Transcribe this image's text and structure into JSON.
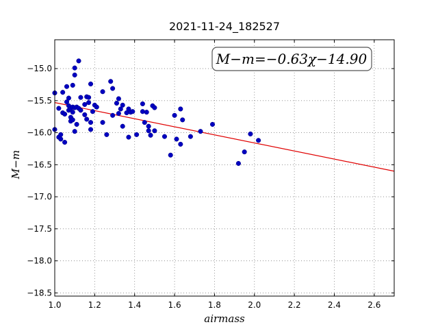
{
  "chart_data": {
    "type": "scatter",
    "title": "2021-11-24_182527",
    "xlabel": "airmass",
    "ylabel": "M−m",
    "xlim": [
      1.0,
      2.7
    ],
    "ylim": [
      -18.55,
      -14.55
    ],
    "y_inverted": true,
    "grid": true,
    "xticks": [
      "1.0",
      "1.2",
      "1.4",
      "1.6",
      "1.8",
      "2.0",
      "2.2",
      "2.4",
      "2.6"
    ],
    "xtick_values": [
      1.0,
      1.2,
      1.4,
      1.6,
      1.8,
      2.0,
      2.2,
      2.4,
      2.6
    ],
    "yticks": [
      "−15.0",
      "−15.5",
      "−16.0",
      "−16.5",
      "−17.0",
      "−17.5",
      "−18.0",
      "−18.5"
    ],
    "ytick_values": [
      -15.0,
      -15.5,
      -16.0,
      -16.5,
      -17.0,
      -17.5,
      -18.0,
      -18.5
    ],
    "annotation": "M−m=−0.63χ−14.90",
    "fit": {
      "slope": -0.63,
      "intercept": -14.9,
      "color": "#e00000"
    },
    "point_color": "#0000c0",
    "points": [
      [
        1.0,
        -15.38
      ],
      [
        1.0,
        -15.95
      ],
      [
        1.02,
        -15.62
      ],
      [
        1.02,
        -16.07
      ],
      [
        1.03,
        -16.03
      ],
      [
        1.03,
        -16.1
      ],
      [
        1.04,
        -15.37
      ],
      [
        1.04,
        -15.69
      ],
      [
        1.05,
        -16.15
      ],
      [
        1.05,
        -15.71
      ],
      [
        1.06,
        -15.28
      ],
      [
        1.06,
        -15.52
      ],
      [
        1.07,
        -15.46
      ],
      [
        1.07,
        -15.58
      ],
      [
        1.07,
        -15.65
      ],
      [
        1.08,
        -15.62
      ],
      [
        1.08,
        -15.76
      ],
      [
        1.08,
        -15.82
      ],
      [
        1.09,
        -15.26
      ],
      [
        1.09,
        -15.6
      ],
      [
        1.09,
        -15.68
      ],
      [
        1.09,
        -15.8
      ],
      [
        1.1,
        -14.99
      ],
      [
        1.1,
        -15.1
      ],
      [
        1.1,
        -15.61
      ],
      [
        1.1,
        -15.98
      ],
      [
        1.11,
        -15.6
      ],
      [
        1.11,
        -15.87
      ],
      [
        1.12,
        -14.88
      ],
      [
        1.12,
        -15.62
      ],
      [
        1.13,
        -15.45
      ],
      [
        1.13,
        -15.65
      ],
      [
        1.15,
        -15.56
      ],
      [
        1.15,
        -15.72
      ],
      [
        1.16,
        -15.44
      ],
      [
        1.16,
        -15.79
      ],
      [
        1.17,
        -15.45
      ],
      [
        1.17,
        -15.53
      ],
      [
        1.18,
        -15.24
      ],
      [
        1.18,
        -15.84
      ],
      [
        1.18,
        -15.95
      ],
      [
        1.19,
        -15.67
      ],
      [
        1.2,
        -15.57
      ],
      [
        1.21,
        -15.6
      ],
      [
        1.24,
        -15.36
      ],
      [
        1.24,
        -15.84
      ],
      [
        1.26,
        -16.03
      ],
      [
        1.28,
        -15.2
      ],
      [
        1.29,
        -15.31
      ],
      [
        1.29,
        -15.73
      ],
      [
        1.31,
        -15.54
      ],
      [
        1.32,
        -15.47
      ],
      [
        1.32,
        -15.7
      ],
      [
        1.33,
        -15.63
      ],
      [
        1.34,
        -15.57
      ],
      [
        1.34,
        -15.9
      ],
      [
        1.36,
        -15.69
      ],
      [
        1.37,
        -15.63
      ],
      [
        1.37,
        -16.07
      ],
      [
        1.38,
        -15.68
      ],
      [
        1.39,
        -15.67
      ],
      [
        1.41,
        -16.03
      ],
      [
        1.44,
        -15.55
      ],
      [
        1.44,
        -15.67
      ],
      [
        1.45,
        -15.84
      ],
      [
        1.46,
        -15.68
      ],
      [
        1.47,
        -15.9
      ],
      [
        1.47,
        -15.97
      ],
      [
        1.48,
        -16.04
      ],
      [
        1.49,
        -15.58
      ],
      [
        1.5,
        -15.97
      ],
      [
        1.5,
        -15.61
      ],
      [
        1.55,
        -16.06
      ],
      [
        1.58,
        -16.35
      ],
      [
        1.6,
        -15.73
      ],
      [
        1.61,
        -16.1
      ],
      [
        1.63,
        -15.63
      ],
      [
        1.63,
        -16.18
      ],
      [
        1.64,
        -15.8
      ],
      [
        1.68,
        -16.06
      ],
      [
        1.73,
        -15.98
      ],
      [
        1.79,
        -15.87
      ],
      [
        1.92,
        -16.48
      ],
      [
        1.95,
        -16.3
      ],
      [
        1.98,
        -16.02
      ],
      [
        2.02,
        -16.12
      ]
    ]
  }
}
